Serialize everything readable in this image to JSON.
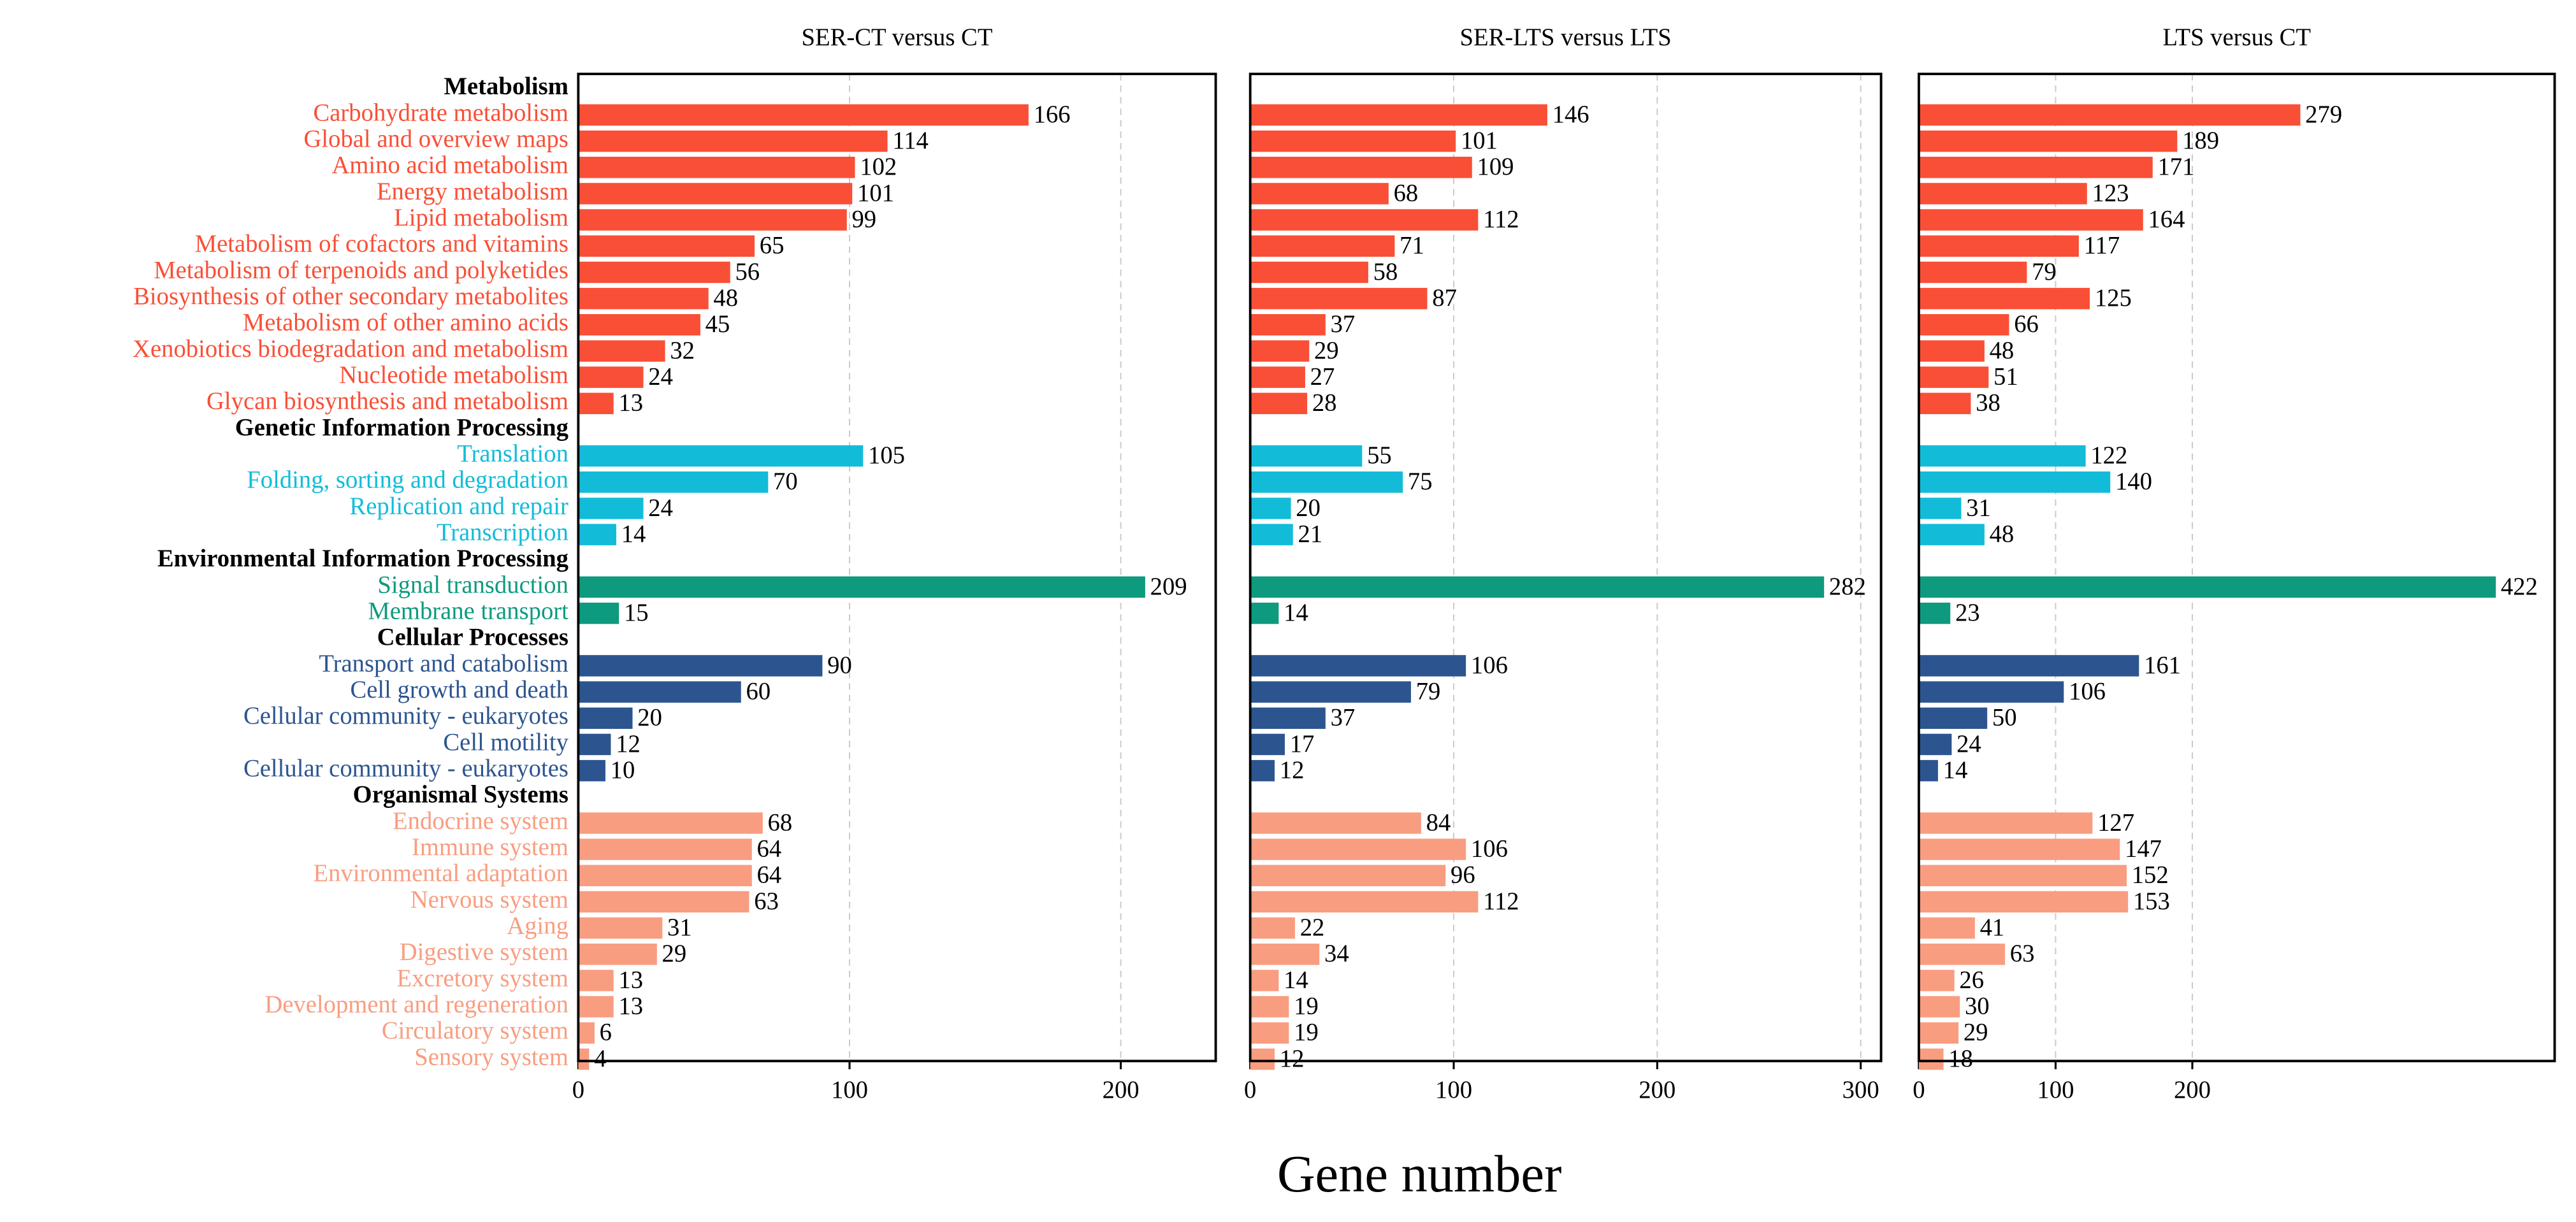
{
  "chart_data": {
    "type": "bar",
    "orientation": "horizontal",
    "xlabel": "Gene number",
    "grid": true,
    "groups": [
      {
        "name": "Metabolism",
        "color": "#f94f36",
        "categories": [
          "Carbohydrate metabolism",
          "Global and overview maps",
          "Amino acid metabolism",
          "Energy metabolism",
          "Lipid metabolism",
          "Metabolism of cofactors and vitamins",
          "Metabolism of terpenoids and polyketides",
          "Biosynthesis of other secondary metabolites",
          "Metabolism of other amino acids",
          "Xenobiotics biodegradation and metabolism",
          "Nucleotide metabolism",
          "Glycan biosynthesis and metabolism"
        ]
      },
      {
        "name": "Genetic Information Processing",
        "color": "#12bcd9",
        "categories": [
          "Translation",
          "Folding, sorting and degradation",
          "Replication and repair",
          "Transcription"
        ]
      },
      {
        "name": "Environmental Information Processing",
        "color": "#0e9a7e",
        "categories": [
          "Signal transduction",
          "Membrane transport"
        ]
      },
      {
        "name": "Cellular Processes",
        "color": "#2c5590",
        "categories": [
          "Transport and catabolism",
          "Cell growth and death",
          "Cellular community - eukaryotes",
          "Cell motility",
          "Cellular community - eukaryotes"
        ]
      },
      {
        "name": "Organismal Systems",
        "color": "#f99d80",
        "categories": [
          "Endocrine system",
          "Immune system",
          "Environmental adaptation",
          "Nervous system",
          "Aging",
          "Digestive system",
          "Excretory system",
          "Development and regeneration",
          "Circulatory system",
          "Sensory system"
        ]
      }
    ],
    "panels": [
      {
        "title": "SER-CT versus CT",
        "xlim": [
          0,
          235
        ],
        "xticks": [
          0,
          100,
          200
        ],
        "values": [
          [
            166,
            114,
            102,
            101,
            99,
            65,
            56,
            48,
            45,
            32,
            24,
            13
          ],
          [
            105,
            70,
            24,
            14
          ],
          [
            209,
            15
          ],
          [
            90,
            60,
            20,
            12,
            10
          ],
          [
            68,
            64,
            64,
            63,
            31,
            29,
            13,
            13,
            6,
            4
          ]
        ]
      },
      {
        "title": "SER-LTS versus LTS",
        "xlim": [
          0,
          310
        ],
        "xticks": [
          0,
          100,
          200,
          300
        ],
        "values": [
          [
            146,
            101,
            109,
            68,
            112,
            71,
            58,
            87,
            37,
            29,
            27,
            28
          ],
          [
            55,
            75,
            20,
            21
          ],
          [
            282,
            14
          ],
          [
            106,
            79,
            37,
            17,
            12
          ],
          [
            84,
            106,
            96,
            112,
            22,
            34,
            14,
            19,
            19,
            12
          ]
        ]
      },
      {
        "title": "LTS versus CT",
        "xlim": [
          0,
          465
        ],
        "xticks": [
          0,
          100,
          200
        ],
        "values": [
          [
            279,
            189,
            171,
            123,
            164,
            117,
            79,
            125,
            66,
            48,
            51,
            38
          ],
          [
            122,
            140,
            31,
            48
          ],
          [
            422,
            23
          ],
          [
            161,
            106,
            50,
            24,
            14
          ],
          [
            127,
            147,
            152,
            153,
            41,
            63,
            26,
            30,
            29,
            18
          ]
        ]
      }
    ]
  }
}
